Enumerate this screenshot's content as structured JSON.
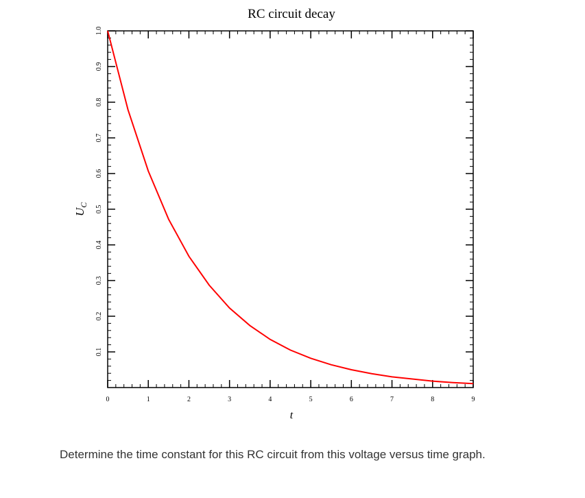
{
  "chart_data": {
    "type": "line",
    "title": "RC circuit decay",
    "xlabel": "t",
    "ylabel": "U",
    "ylabel_subscript": "C",
    "x": [
      0,
      0.5,
      1,
      1.5,
      2,
      2.5,
      3,
      3.5,
      4,
      4.5,
      5,
      5.5,
      6,
      6.5,
      7,
      7.5,
      8,
      8.5,
      9
    ],
    "series": [
      {
        "color": "#ff0000",
        "values": [
          1,
          0.779,
          0.607,
          0.472,
          0.368,
          0.287,
          0.223,
          0.174,
          0.135,
          0.105,
          0.082,
          0.064,
          0.05,
          0.039,
          0.03,
          0.024,
          0.018,
          0.014,
          0.011
        ]
      }
    ],
    "xlim": [
      0,
      9
    ],
    "xticks": [
      0,
      1,
      2,
      3,
      4,
      5,
      6,
      7,
      8,
      9
    ],
    "ylim": [
      0,
      1
    ],
    "yticks": [
      0.1,
      0.2,
      0.3,
      0.4,
      0.5,
      0.6,
      0.7,
      0.8,
      0.9,
      {
        "value": 1,
        "label": "1.0"
      }
    ]
  },
  "question": "Determine the time constant for this RC circuit from this voltage versus time graph."
}
